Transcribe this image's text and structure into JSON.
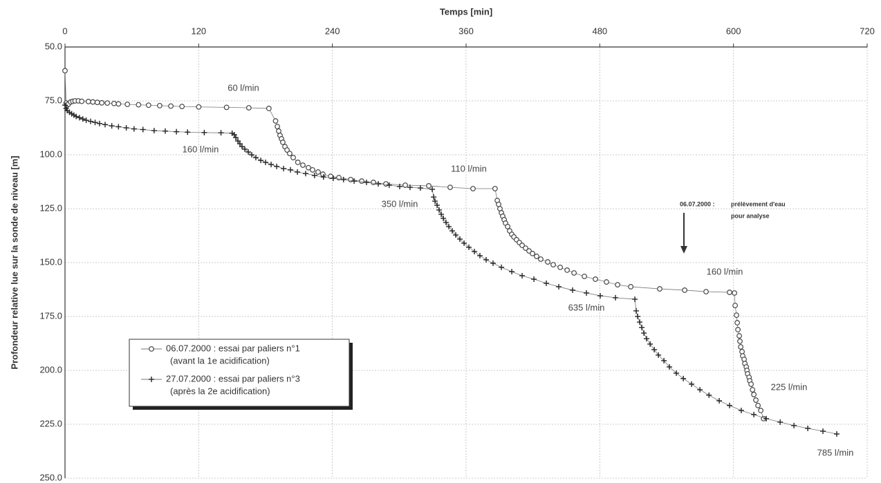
{
  "chart_data": {
    "type": "line",
    "x_label": "Temps [min]",
    "y_label": "Profondeur relative lue sur la sonde de niveau [m]",
    "xlim": [
      0,
      720
    ],
    "xticks": [
      0,
      120,
      240,
      360,
      480,
      600,
      720
    ],
    "ylim": [
      50,
      250
    ],
    "y_inverted": true,
    "yticks": [
      {
        "value": 50,
        "label": "50.0"
      },
      {
        "value": 75,
        "label": "75.0"
      },
      {
        "value": 100,
        "label": "100.0"
      },
      {
        "value": 125,
        "label": "125.0"
      },
      {
        "value": 150,
        "label": "150.0"
      },
      {
        "value": 175,
        "label": "175.0"
      },
      {
        "value": 200,
        "label": "200.0"
      },
      {
        "value": 225,
        "label": "225.0"
      },
      {
        "value": 250,
        "label": "250.0"
      }
    ],
    "grid": true,
    "series": [
      {
        "name": "06.07.2000 :  essai par paliers n°1",
        "legend_detail": "(avant la 1e acidification)",
        "marker": "circle",
        "color": "#444444",
        "x": [
          0,
          1,
          2,
          3,
          5,
          7,
          9,
          12,
          15,
          21,
          25,
          29,
          33,
          38,
          44,
          48,
          56,
          66,
          75,
          85,
          95,
          105,
          120,
          145,
          165,
          183,
          189,
          190.6,
          191.8,
          193,
          194.3,
          195.5,
          197.4,
          199.3,
          201.7,
          204.8,
          209,
          213.5,
          218.5,
          222.2,
          227.2,
          231.5,
          238.4,
          245.8,
          256.4,
          266.3,
          276.8,
          288,
          305.4,
          326.5,
          345.7,
          366.2,
          386,
          388,
          389.2,
          390.4,
          391.7,
          392.9,
          394.2,
          395.4,
          397.3,
          399.1,
          401,
          402.9,
          405.3,
          407.8,
          410.3,
          413.4,
          416.5,
          419.6,
          423.3,
          427,
          433.3,
          438.2,
          444.5,
          450.7,
          456.9,
          466.2,
          476.1,
          486,
          496,
          507.8,
          533.8,
          556.2,
          575.4,
          596.5,
          600.9,
          601.5,
          602.7,
          603.4,
          604,
          605.2,
          605.8,
          606.5,
          607.7,
          608.3,
          609.6,
          610.2,
          611.5,
          612.1,
          612.7,
          614,
          614.6,
          615.8,
          617.1,
          618.3,
          620.1,
          622,
          624.5,
          627
        ],
        "values": [
          61,
          76,
          77,
          76.5,
          75.5,
          75.2,
          75,
          75,
          75.2,
          75.3,
          75.5,
          75.7,
          75.9,
          76,
          76.2,
          76.4,
          76.6,
          76.8,
          77,
          77.2,
          77.4,
          77.6,
          77.8,
          78,
          78.2,
          78.5,
          84.3,
          86.9,
          89,
          91,
          92.6,
          94.2,
          96.2,
          97.8,
          99.4,
          101.3,
          103.5,
          104.8,
          106,
          107,
          108,
          109,
          110,
          110.6,
          111.5,
          112.2,
          112.8,
          113.5,
          114.1,
          114.4,
          115.1,
          115.7,
          115.7,
          121.2,
          123,
          125,
          126.9,
          128.5,
          130.1,
          131.7,
          133.3,
          135.3,
          136.9,
          138.1,
          139.4,
          140.7,
          142,
          143.3,
          144.6,
          145.8,
          147.1,
          148.4,
          149.7,
          151,
          152.2,
          153.5,
          154.8,
          156.4,
          157.7,
          159,
          160.3,
          161.2,
          162.2,
          162.8,
          163.5,
          163.8,
          164.1,
          169.9,
          174.4,
          177.9,
          181.1,
          184,
          186.5,
          189.1,
          191.3,
          193.3,
          194.9,
          196.8,
          198.4,
          200,
          201.6,
          203.2,
          204.8,
          206.4,
          209,
          211.2,
          213.8,
          216.3,
          218.6,
          222.4
        ]
      },
      {
        "name": "27.07.2000 :  essai par paliers n°3",
        "legend_detail": "(après la 2e acidification)",
        "marker": "plus",
        "color": "#222222",
        "x": [
          0,
          1,
          2,
          4,
          6,
          8,
          10,
          13,
          16,
          19,
          23,
          27,
          31,
          36,
          42,
          48,
          55,
          62,
          70,
          80,
          90,
          100,
          110,
          125,
          140,
          150,
          152,
          153.3,
          155.2,
          157,
          158.9,
          161.4,
          164.5,
          167.6,
          171.3,
          175.7,
          180,
          185,
          190,
          196.2,
          202.4,
          208.6,
          216,
          224,
          232,
          240.8,
          250,
          259.5,
          270.6,
          281.2,
          291,
          300.4,
          309.7,
          319,
          329.6,
          330.9,
          332.1,
          334,
          335.8,
          337.7,
          339.6,
          342,
          344.5,
          347.6,
          350.7,
          354.4,
          358.2,
          362.5,
          367.5,
          372.4,
          378,
          384.2,
          391.7,
          401,
          410.3,
          420.9,
          432,
          443.2,
          455.6,
          468,
          480.4,
          494.1,
          511.5,
          512.7,
          514,
          515.8,
          517.7,
          519.6,
          522,
          525.2,
          528.9,
          532.6,
          537.6,
          542.5,
          548.7,
          555,
          562.4,
          569.9,
          578,
          587.2,
          596.5,
          607,
          618.3,
          629.4,
          641.9,
          654.3,
          666.7,
          680.3,
          692.7
        ],
        "values": [
          77,
          78.5,
          79.5,
          80.3,
          81,
          81.6,
          82.2,
          82.8,
          83.4,
          84,
          84.5,
          85,
          85.5,
          86,
          86.6,
          87,
          87.5,
          88,
          88.3,
          88.8,
          89,
          89.3,
          89.5,
          89.7,
          89.8,
          90,
          90.7,
          92,
          93.6,
          94.9,
          96.2,
          97.4,
          98.7,
          100,
          101.3,
          102.6,
          103.5,
          104.5,
          105.4,
          106.4,
          107,
          108,
          108.7,
          109.6,
          110.3,
          110.9,
          111.5,
          112.2,
          112.8,
          113.5,
          114.1,
          114.7,
          115.1,
          115.4,
          116,
          119.6,
          121.5,
          123.4,
          125.6,
          127.6,
          129.5,
          131.4,
          133.3,
          135.3,
          137.2,
          139.1,
          141,
          142.9,
          144.9,
          146.8,
          148.7,
          150.3,
          152.2,
          154.2,
          156.1,
          157.7,
          159.6,
          161.2,
          162.8,
          164.1,
          165.4,
          166.3,
          167,
          172.4,
          175,
          177.6,
          180.1,
          182.7,
          185.3,
          187.8,
          190.4,
          192.9,
          195.5,
          198.4,
          201.3,
          203.8,
          206.4,
          209,
          211.5,
          214.1,
          216.3,
          218.6,
          220.5,
          222.4,
          224,
          225.6,
          226.9,
          228.2,
          229.5
        ]
      }
    ],
    "annotations": [
      "60 l/min",
      "160 l/min",
      "110 l/min",
      "350 l/min",
      "160 l/min",
      "635 l/min",
      "225 l/min",
      "785 l/min"
    ],
    "note": {
      "date": "06.07.2000 :",
      "line1": "prélèvement d'eau",
      "line2": "pour analyse"
    }
  }
}
